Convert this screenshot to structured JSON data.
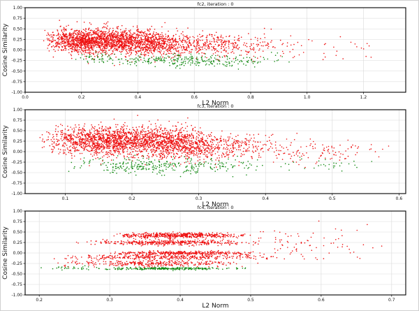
{
  "chart_data": [
    {
      "type": "scatter",
      "title": "fc2, iteration : 0",
      "xlabel": "L2 Norm",
      "ylabel": "Cosine Similarity",
      "xlim": [
        0.0,
        1.35
      ],
      "ylim": [
        -1.0,
        1.0
      ],
      "xticks": [
        0.0,
        0.2,
        0.4,
        0.6,
        0.8,
        1.0,
        1.2
      ],
      "xtick_labels": [
        "0.0",
        "0.2",
        "0.4",
        "0.6",
        "0.8",
        "1.0",
        "1.2"
      ],
      "yticks": [
        -1.0,
        -0.75,
        -0.5,
        -0.25,
        0.0,
        0.25,
        0.5,
        0.75,
        1.0
      ],
      "ytick_labels": [
        "-1.00",
        "-0.75",
        "-0.50",
        "-0.25",
        "0.00",
        "0.25",
        "0.50",
        "0.75",
        "1.00"
      ],
      "grid": true,
      "series": [
        {
          "color": "#ee1111",
          "clusters": [
            {
              "count": 1800,
              "x_range": [
                0.06,
                0.55
              ],
              "x_peak": 0.22,
              "y_center": 0.22,
              "y_spread": 0.14
            },
            {
              "count": 700,
              "x_range": [
                0.3,
                0.85
              ],
              "x_peak": 0.45,
              "y_center": 0.12,
              "y_spread": 0.14
            },
            {
              "count": 120,
              "x_range": [
                0.6,
                1.3
              ],
              "x_peak": 0.7,
              "y_center": 0.08,
              "y_spread": 0.15
            }
          ]
        },
        {
          "color": "#138a13",
          "clusters": [
            {
              "count": 260,
              "x_range": [
                0.3,
                0.95
              ],
              "x_peak": 0.5,
              "y_center": -0.25,
              "y_spread": 0.07
            },
            {
              "count": 50,
              "x_range": [
                0.15,
                0.35
              ],
              "x_peak": 0.28,
              "y_center": -0.18,
              "y_spread": 0.07
            }
          ]
        }
      ]
    },
    {
      "type": "scatter",
      "title": "fc3, iteration : 0",
      "xlabel": "L2 Norm",
      "ylabel": "Cosine Similarity",
      "xlim": [
        0.04,
        0.61
      ],
      "ylim": [
        -1.0,
        1.0
      ],
      "xticks": [
        0.1,
        0.2,
        0.3,
        0.4,
        0.5,
        0.6
      ],
      "xtick_labels": [
        "0.1",
        "0.2",
        "0.3",
        "0.4",
        "0.5",
        "0.6"
      ],
      "yticks": [
        -1.0,
        -0.75,
        -0.5,
        -0.25,
        0.0,
        0.25,
        0.5,
        0.75,
        1.0
      ],
      "ytick_labels": [
        "-1.00",
        "-0.75",
        "-0.50",
        "-0.25",
        "0.00",
        "0.25",
        "0.50",
        "0.75",
        "1.00"
      ],
      "grid": true,
      "series": [
        {
          "color": "#ee1111",
          "clusters": [
            {
              "count": 1900,
              "x_range": [
                0.06,
                0.34
              ],
              "x_peak": 0.17,
              "y_center": 0.25,
              "y_spread": 0.17
            },
            {
              "count": 600,
              "x_range": [
                0.2,
                0.45
              ],
              "x_peak": 0.28,
              "y_center": 0.1,
              "y_spread": 0.15
            },
            {
              "count": 100,
              "x_range": [
                0.4,
                0.6
              ],
              "x_peak": 0.45,
              "y_center": 0.0,
              "y_spread": 0.15
            }
          ]
        },
        {
          "color": "#138a13",
          "clusters": [
            {
              "count": 300,
              "x_range": [
                0.1,
                0.42
              ],
              "x_peak": 0.22,
              "y_center": -0.33,
              "y_spread": 0.09
            },
            {
              "count": 30,
              "x_range": [
                0.4,
                0.58
              ],
              "x_peak": 0.48,
              "y_center": -0.3,
              "y_spread": 0.08
            }
          ]
        }
      ]
    },
    {
      "type": "scatter",
      "title": "fc4, iteration : 0",
      "xlabel": "L2 Norm",
      "ylabel": "Cosine Similarity",
      "xlim": [
        0.18,
        0.72
      ],
      "ylim": [
        -1.0,
        1.0
      ],
      "xticks": [
        0.2,
        0.3,
        0.4,
        0.5,
        0.6,
        0.7
      ],
      "xtick_labels": [
        "0.2",
        "0.3",
        "0.4",
        "0.5",
        "0.6",
        "0.7"
      ],
      "yticks": [
        -1.0,
        -0.75,
        -0.5,
        -0.25,
        0.0,
        0.25,
        0.5,
        0.75,
        1.0
      ],
      "ytick_labels": [
        "-1.00",
        "-0.75",
        "-0.50",
        "-0.25",
        "0.00",
        "0.25",
        "0.50",
        "0.75",
        "1.00"
      ],
      "grid": true,
      "series": [
        {
          "color": "#ee1111",
          "clusters": [
            {
              "count": 500,
              "x_range": [
                0.3,
                0.5
              ],
              "x_peak": 0.4,
              "y_center": 0.42,
              "y_spread": 0.03
            },
            {
              "count": 400,
              "x_range": [
                0.24,
                0.52
              ],
              "x_peak": 0.38,
              "y_center": 0.25,
              "y_spread": 0.03
            },
            {
              "count": 350,
              "x_range": [
                0.3,
                0.52
              ],
              "x_peak": 0.4,
              "y_center": 0.0,
              "y_spread": 0.02
            },
            {
              "count": 350,
              "x_range": [
                0.22,
                0.55
              ],
              "x_peak": 0.38,
              "y_center": -0.1,
              "y_spread": 0.03
            },
            {
              "count": 300,
              "x_range": [
                0.22,
                0.5
              ],
              "x_peak": 0.35,
              "y_center": -0.25,
              "y_spread": 0.04
            },
            {
              "count": 80,
              "x_range": [
                0.5,
                0.7
              ],
              "x_peak": 0.55,
              "y_center": 0.2,
              "y_spread": 0.2
            }
          ]
        },
        {
          "color": "#138a13",
          "clusters": [
            {
              "count": 250,
              "x_range": [
                0.28,
                0.5
              ],
              "x_peak": 0.38,
              "y_center": -0.37,
              "y_spread": 0.015
            },
            {
              "count": 30,
              "x_range": [
                0.2,
                0.3
              ],
              "x_peak": 0.25,
              "y_center": -0.36,
              "y_spread": 0.02
            }
          ]
        }
      ]
    }
  ]
}
